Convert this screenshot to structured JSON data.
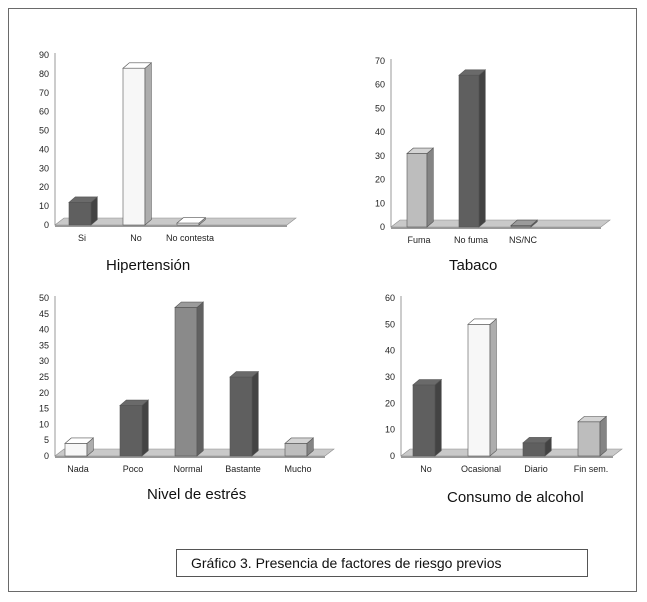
{
  "caption": "Gráfico 3. Presencia de factores de riesgo previos",
  "colors": {
    "dark": "#5f5f5f",
    "mid": "#8a8a8a",
    "light": "#bdbdbd",
    "white": "#f7f7f7",
    "floor": "#c9c9c9"
  },
  "chart_data": [
    {
      "type": "bar",
      "title": "Hipertensión",
      "categories": [
        "Si",
        "No",
        "No contesta"
      ],
      "values": [
        12,
        83,
        1
      ],
      "bar_colors": [
        "dark",
        "white",
        "white"
      ],
      "ylim": [
        0,
        90
      ],
      "yticks": [
        0,
        10,
        20,
        30,
        40,
        50,
        60,
        70,
        80,
        90
      ],
      "grid": false
    },
    {
      "type": "bar",
      "title": "Tabaco",
      "categories": [
        "Fuma",
        "No fuma",
        "NS/NC"
      ],
      "values": [
        31,
        64,
        0.5
      ],
      "bar_colors": [
        "light",
        "dark",
        "mid"
      ],
      "ylim": [
        0,
        70
      ],
      "yticks": [
        0,
        10,
        20,
        30,
        40,
        50,
        60,
        70
      ],
      "grid": false
    },
    {
      "type": "bar",
      "title": "Nivel de estrés",
      "categories": [
        "Nada",
        "Poco",
        "Normal",
        "Bastante",
        "Mucho"
      ],
      "values": [
        4,
        16,
        47,
        25,
        4
      ],
      "bar_colors": [
        "white",
        "dark",
        "mid",
        "dark",
        "light"
      ],
      "ylim": [
        0,
        50
      ],
      "yticks": [
        0,
        5,
        10,
        15,
        20,
        25,
        30,
        35,
        40,
        45,
        50
      ],
      "grid": false
    },
    {
      "type": "bar",
      "title": "Consumo de alcohol",
      "categories": [
        "No",
        "Ocasional",
        "Diario",
        "Fin sem."
      ],
      "values": [
        27,
        50,
        5,
        13
      ],
      "bar_colors": [
        "dark",
        "white",
        "dark",
        "light"
      ],
      "ylim": [
        0,
        60
      ],
      "yticks": [
        0,
        10,
        20,
        30,
        40,
        50,
        60
      ],
      "grid": false
    }
  ]
}
